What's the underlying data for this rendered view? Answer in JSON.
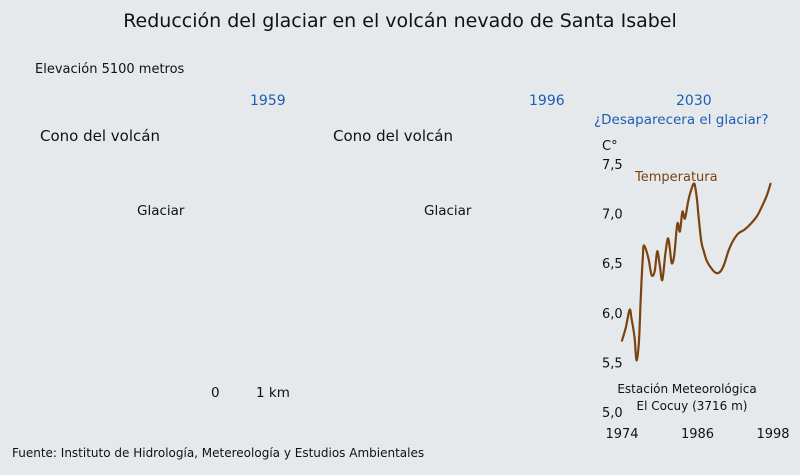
{
  "title": "Reducción del glaciar en el volcán nevado de Santa Isabel",
  "elevation_label": "Elevación 5100 metros",
  "panels": [
    {
      "year": "1959",
      "cone_label": "Cono del volcán",
      "glacier_label": "Glaciar"
    },
    {
      "year": "1996",
      "cone_label": "Cono del volcán",
      "glacier_label": "Glaciar"
    },
    {
      "year": "2030",
      "question": "¿Desaparecera el glaciar?"
    }
  ],
  "scale": {
    "start": "0",
    "end": "1 km"
  },
  "source": "Fuente: Instituto de Hidrología, Metereología y Estudios Ambientales",
  "colors": {
    "year_text": "#1a5fb4",
    "temperature_line": "#7a4310",
    "background": "#e6e9ec"
  },
  "chart_data": {
    "type": "line",
    "title": "",
    "ylabel": "C°",
    "xlabel": "",
    "ylim": [
      5.0,
      7.5
    ],
    "xlim": [
      1974,
      1998
    ],
    "yticks": [
      "7,5",
      "7,0",
      "6,5",
      "6,0",
      "5,5",
      "5,0"
    ],
    "xticks": [
      "1974",
      "1986",
      "1998"
    ],
    "grid": false,
    "annotation": "Estación Meteorológica\nEl Cocuy (3716 m)",
    "series": [
      {
        "name": "Temperatura",
        "color": "#7a4310",
        "x": [
          1974.0,
          1974.6,
          1975.2,
          1975.5,
          1976.0,
          1976.3,
          1976.7,
          1977.0,
          1977.3,
          1977.5,
          1978.2,
          1978.7,
          1979.2,
          1979.6,
          1980.0,
          1980.4,
          1980.9,
          1981.3,
          1981.6,
          1981.9,
          1982.3,
          1982.8,
          1983.2,
          1983.6,
          1984.0,
          1984.5,
          1985.0,
          1985.5,
          1985.9,
          1986.2,
          1986.6,
          1987.0,
          1987.5,
          1988.3,
          1989.0,
          1989.7,
          1990.3,
          1990.9,
          1991.6,
          1992.5,
          1993.5,
          1994.5,
          1995.5,
          1996.3,
          1997.0,
          1997.6
        ],
        "y": [
          5.72,
          5.85,
          6.03,
          5.95,
          5.75,
          5.52,
          5.72,
          6.18,
          6.55,
          6.68,
          6.55,
          6.38,
          6.42,
          6.62,
          6.48,
          6.33,
          6.6,
          6.75,
          6.65,
          6.5,
          6.58,
          6.9,
          6.82,
          7.02,
          6.95,
          7.12,
          7.24,
          7.3,
          7.15,
          6.95,
          6.72,
          6.62,
          6.52,
          6.44,
          6.4,
          6.42,
          6.5,
          6.62,
          6.72,
          6.8,
          6.84,
          6.9,
          6.98,
          7.08,
          7.18,
          7.3
        ]
      }
    ]
  }
}
